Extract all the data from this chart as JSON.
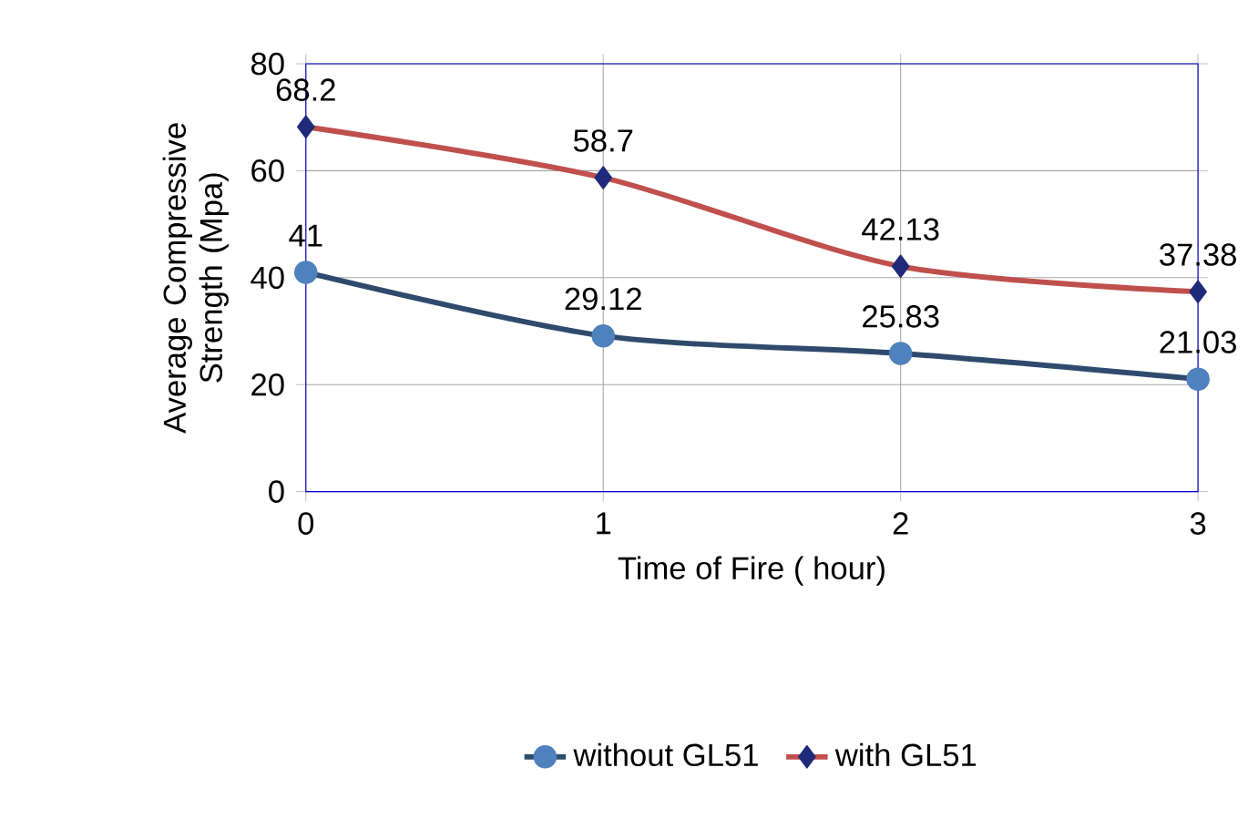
{
  "chart_data": {
    "type": "line",
    "xlabel": "Time of Fire ( hour)",
    "ylabel": "Average Compressive Strength (Mpa)",
    "x": [
      0,
      1,
      2,
      3
    ],
    "series": [
      {
        "name": "without GL51",
        "color": "#2f4a6d",
        "marker": "circle",
        "values": [
          41,
          29.12,
          25.83,
          21.03
        ]
      },
      {
        "name": "with  GL51",
        "color": "#c0504d",
        "marker": "diamond",
        "values": [
          68.2,
          58.7,
          42.13,
          37.38
        ]
      }
    ],
    "xlim": [
      0,
      3
    ],
    "xticks": [
      0,
      1,
      2,
      3
    ],
    "ylim": [
      0,
      80
    ],
    "yticks": [
      0,
      20,
      40,
      60,
      80
    ],
    "grid": true,
    "legend": "bottom",
    "data_labels": true
  }
}
